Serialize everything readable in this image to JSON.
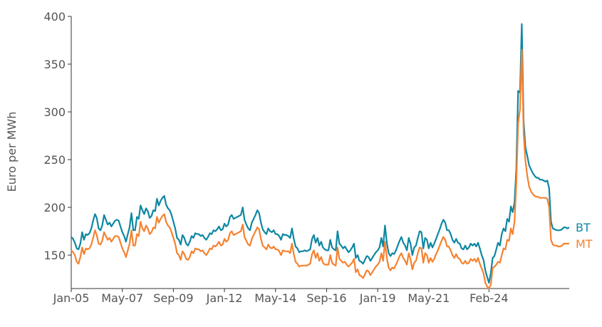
{
  "chart_data": {
    "type": "line",
    "ylabel": "Euro per MWh",
    "ylim": [
      115,
      400
    ],
    "yticks": [
      150,
      200,
      250,
      300,
      350,
      400
    ],
    "xticks": [
      "Jan-05",
      "May-07",
      "Sep-09",
      "Jan-12",
      "May-14",
      "Sep-16",
      "Jan-19",
      "May-21",
      "Feb-24"
    ],
    "xtick_positions": [
      0,
      28,
      56,
      84,
      112,
      140,
      168,
      196,
      229
    ],
    "x_period": "monthly, Jan-05 to Feb-24",
    "grid": false,
    "legend": "direct labels at line ends (right)",
    "series": [
      {
        "name": "BT",
        "color": "#0e87a3",
        "values": [
          169,
          167,
          163,
          157,
          156,
          162,
          174,
          166,
          172,
          171,
          173,
          178,
          186,
          193,
          189,
          178,
          176,
          181,
          192,
          187,
          182,
          184,
          180,
          183,
          186,
          187,
          186,
          180,
          174,
          170,
          164,
          172,
          179,
          194,
          176,
          176,
          190,
          188,
          202,
          197,
          193,
          199,
          196,
          189,
          191,
          197,
          196,
          209,
          202,
          207,
          210,
          212,
          203,
          199,
          197,
          192,
          185,
          178,
          168,
          166,
          161,
          171,
          168,
          162,
          160,
          164,
          170,
          168,
          173,
          172,
          172,
          170,
          171,
          168,
          166,
          169,
          173,
          172,
          176,
          175,
          177,
          180,
          176,
          177,
          183,
          180,
          182,
          190,
          192,
          188,
          189,
          190,
          191,
          192,
          200,
          187,
          182,
          178,
          176,
          184,
          188,
          192,
          197,
          194,
          184,
          177,
          174,
          172,
          178,
          175,
          174,
          176,
          172,
          172,
          170,
          166,
          172,
          171,
          171,
          170,
          168,
          178,
          167,
          159,
          157,
          153,
          154,
          154,
          155,
          154,
          155,
          156,
          167,
          171,
          163,
          168,
          160,
          164,
          158,
          156,
          155,
          155,
          166,
          158,
          156,
          155,
          175,
          162,
          160,
          157,
          159,
          156,
          153,
          155,
          158,
          162,
          147,
          150,
          144,
          143,
          141,
          145,
          149,
          148,
          144,
          147,
          150,
          153,
          155,
          158,
          168,
          159,
          181,
          163,
          152,
          149,
          152,
          151,
          155,
          160,
          165,
          169,
          163,
          160,
          155,
          168,
          162,
          150,
          158,
          160,
          168,
          175,
          174,
          157,
          168,
          166,
          157,
          163,
          158,
          162,
          167,
          172,
          177,
          183,
          187,
          184,
          176,
          176,
          172,
          166,
          163,
          167,
          163,
          162,
          157,
          156,
          160,
          156,
          158,
          162,
          160,
          162,
          159,
          163,
          157,
          150,
          145,
          134,
          127,
          121,
          131,
          147,
          149,
          156,
          163,
          160,
          172,
          178,
          175,
          188,
          185,
          201,
          195,
          205,
          240,
          322,
          320,
          392,
          290,
          263,
          254,
          244,
          240,
          236,
          233,
          231,
          231,
          229,
          229,
          228,
          227,
          228,
          220,
          185,
          178,
          177,
          176,
          176,
          176,
          177,
          179,
          179,
          178,
          179
        ]
      },
      {
        "name": "MT",
        "color": "#f58230",
        "values": [
          155,
          153,
          150,
          143,
          141,
          148,
          158,
          151,
          157,
          156,
          157,
          161,
          168,
          176,
          171,
          162,
          161,
          165,
          174,
          170,
          166,
          168,
          164,
          167,
          170,
          170,
          169,
          163,
          157,
          153,
          148,
          155,
          162,
          176,
          160,
          160,
          172,
          170,
          185,
          178,
          175,
          181,
          178,
          172,
          174,
          179,
          178,
          190,
          184,
          188,
          191,
          193,
          185,
          181,
          179,
          174,
          168,
          162,
          152,
          150,
          145,
          154,
          151,
          146,
          145,
          148,
          154,
          152,
          157,
          156,
          156,
          154,
          155,
          152,
          150,
          153,
          157,
          156,
          160,
          159,
          161,
          164,
          160,
          161,
          167,
          164,
          166,
          173,
          175,
          171,
          172,
          173,
          174,
          175,
          182,
          169,
          165,
          161,
          160,
          167,
          171,
          175,
          179,
          177,
          167,
          160,
          158,
          156,
          161,
          158,
          157,
          159,
          156,
          156,
          154,
          150,
          155,
          154,
          154,
          154,
          152,
          162,
          151,
          143,
          141,
          138,
          139,
          139,
          139,
          139,
          140,
          141,
          151,
          155,
          147,
          152,
          144,
          148,
          142,
          140,
          140,
          140,
          150,
          142,
          140,
          139,
          158,
          146,
          144,
          142,
          143,
          140,
          138,
          140,
          142,
          146,
          132,
          135,
          129,
          128,
          126,
          130,
          134,
          133,
          129,
          132,
          135,
          138,
          140,
          143,
          152,
          144,
          164,
          147,
          137,
          134,
          137,
          136,
          140,
          144,
          149,
          152,
          147,
          144,
          140,
          152,
          146,
          135,
          142,
          144,
          152,
          158,
          157,
          142,
          152,
          150,
          142,
          147,
          143,
          146,
          151,
          155,
          160,
          165,
          169,
          166,
          159,
          159,
          155,
          150,
          147,
          151,
          147,
          146,
          142,
          141,
          144,
          141,
          142,
          146,
          144,
          146,
          143,
          147,
          141,
          136,
          131,
          121,
          117,
          115,
          119,
          136,
          138,
          140,
          143,
          142,
          150,
          157,
          156,
          166,
          165,
          178,
          172,
          185,
          225,
          288,
          303,
          365,
          278,
          249,
          233,
          222,
          217,
          214,
          212,
          211,
          211,
          210,
          210,
          210,
          210,
          209,
          200,
          166,
          161,
          160,
          160,
          159,
          159,
          160,
          162,
          162,
          162,
          162
        ]
      }
    ]
  }
}
